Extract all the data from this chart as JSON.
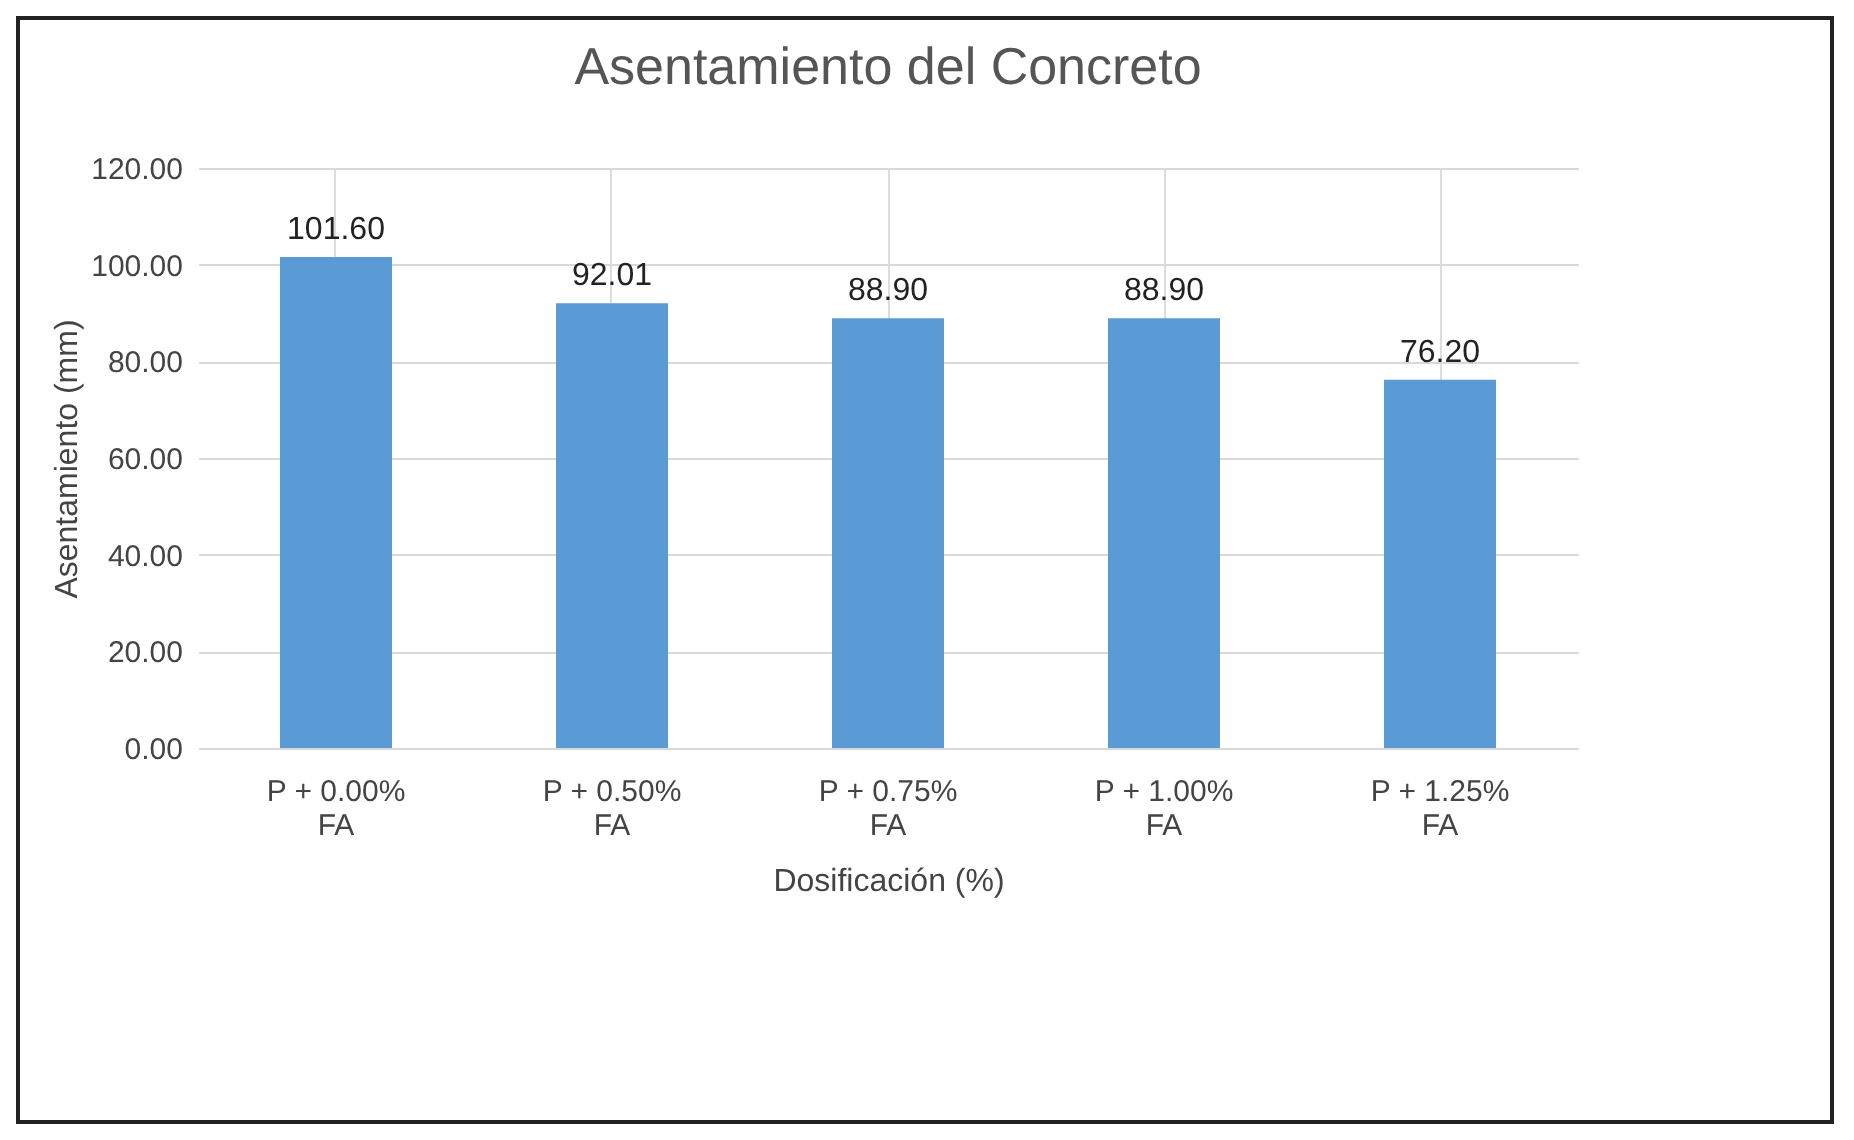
{
  "chart_data": {
    "type": "bar",
    "title": "Asentamiento del Concreto",
    "xlabel": "Dosificación (%)",
    "ylabel": "Asentamiento (mm)",
    "categories": [
      "P + 0.00%\nFA",
      "P + 0.50%\nFA",
      "P + 0.75%\nFA",
      "P + 1.00%\nFA",
      "P + 1.25%\nFA"
    ],
    "values": [
      101.6,
      92.01,
      88.9,
      88.9,
      76.2
    ],
    "value_labels": [
      "101.60",
      "92.01",
      "88.90",
      "88.90",
      "76.20"
    ],
    "color": "#5b9bd5",
    "ylim": [
      0,
      120
    ],
    "yticks": [
      {
        "value": 0,
        "label": "0.00"
      },
      {
        "value": 20,
        "label": "20.00"
      },
      {
        "value": 40,
        "label": "40.00"
      },
      {
        "value": 60,
        "label": "60.00"
      },
      {
        "value": 80,
        "label": "80.00"
      },
      {
        "value": 100,
        "label": "100.00"
      },
      {
        "value": 120,
        "label": "120.00"
      }
    ],
    "grid": true
  }
}
